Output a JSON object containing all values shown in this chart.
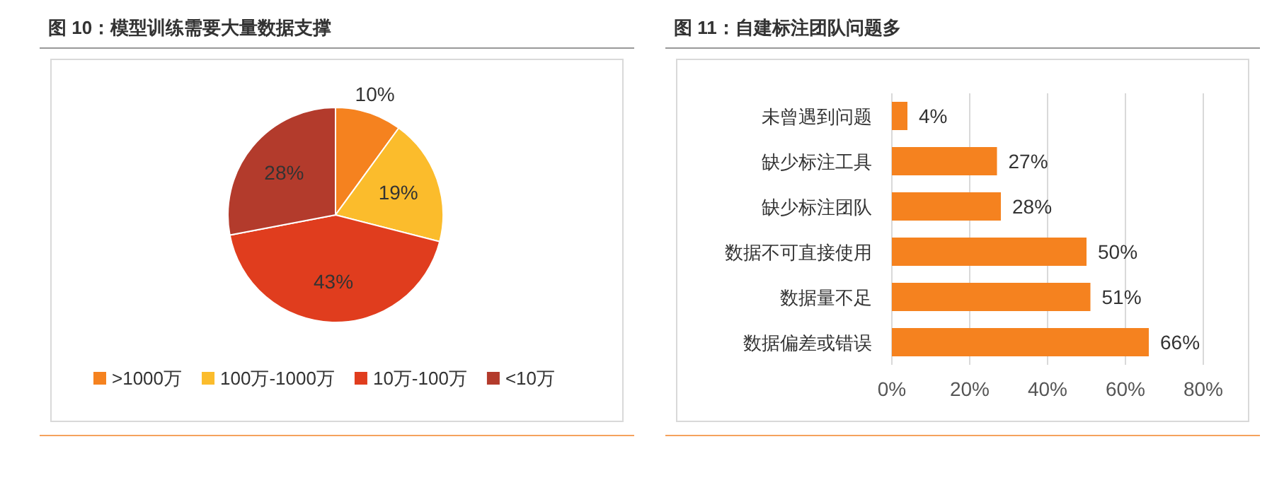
{
  "chart_data": [
    {
      "type": "pie",
      "title": "图 10：模型训练需要大量数据支撑",
      "categories": [
        ">1000万",
        "100万-1000万",
        "10万-100万",
        "<10万"
      ],
      "values": [
        10,
        19,
        43,
        28
      ],
      "colors": [
        "#f5821f",
        "#fbbc2c",
        "#e03d1e",
        "#b33b2c"
      ],
      "value_labels": [
        "10%",
        "19%",
        "43%",
        "28%"
      ],
      "legend": "bottom"
    },
    {
      "type": "bar",
      "title": "图 11：自建标注团队问题多",
      "orientation": "horizontal",
      "categories": [
        "未曾遇到问题",
        "缺少标注工具",
        "缺少标注团队",
        "数据不可直接使用",
        "数据量不足",
        "数据偏差或错误"
      ],
      "values": [
        4,
        27,
        28,
        50,
        51,
        66
      ],
      "color": "#f5821f",
      "value_labels": [
        "4%",
        "27%",
        "28%",
        "50%",
        "51%",
        "66%"
      ],
      "xlim": [
        0,
        80
      ],
      "xticks": [
        {
          "value": 0,
          "label": "0%"
        },
        {
          "value": 20,
          "label": "20%"
        },
        {
          "value": 40,
          "label": "40%"
        },
        {
          "value": 60,
          "label": "60%"
        },
        {
          "value": 80,
          "label": "80%"
        }
      ],
      "grid": "x"
    }
  ]
}
